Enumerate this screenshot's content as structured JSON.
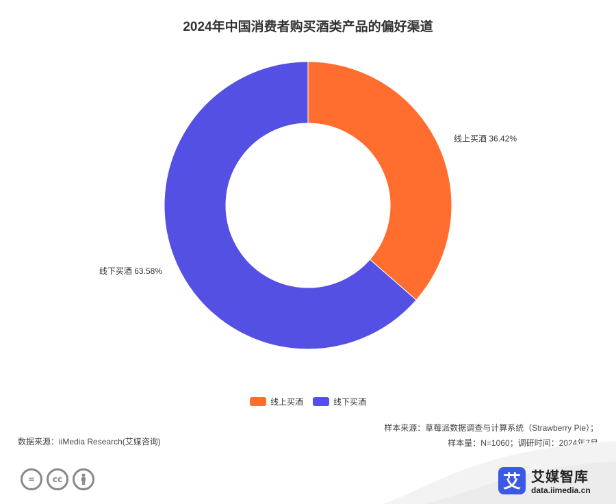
{
  "chart_data": {
    "type": "pie",
    "title": "2024年中国消费者购买酒类产品的偏好渠道",
    "series": [
      {
        "name": "线上买酒",
        "value": 36.42,
        "label": "线上买酒 36.42%",
        "color": "#ff6e2e"
      },
      {
        "name": "线下买酒",
        "value": 63.58,
        "label": "线下买酒 63.58%",
        "color": "#5450e4"
      }
    ],
    "legend": [
      "线上买酒",
      "线下买酒"
    ],
    "legend_position": "bottom-center"
  },
  "footer": {
    "source_left": "数据来源：iiMedia Research(艾媒咨询)",
    "source_right_line1": "样本来源：草莓派数据调查与计算系统（Strawberry Pie）；",
    "source_right_line2": "样本量：N=1060；调研时间：2024年7月",
    "license_icons": [
      "equals-icon",
      "cc-icon",
      "person-icon"
    ],
    "brand_logo_char": "艾",
    "brand_name": "艾媒智库",
    "brand_url": "data.iimedia.cn"
  }
}
